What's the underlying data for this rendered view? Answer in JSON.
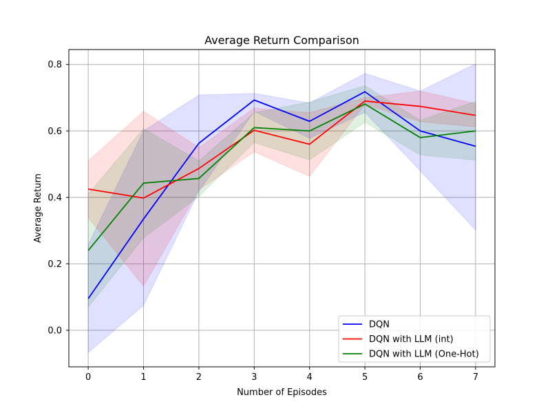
{
  "chart_data": {
    "type": "line",
    "title": "Average Return Comparison",
    "xlabel": "Number of Episodes",
    "ylabel": "Average Return",
    "x": [
      0,
      1,
      2,
      3,
      4,
      5,
      6,
      7
    ],
    "xlim": [
      -0.35,
      7.35
    ],
    "ylim": [
      -0.11,
      0.845
    ],
    "xticks": [
      "0",
      "1",
      "2",
      "3",
      "4",
      "5",
      "6",
      "7"
    ],
    "yticks": [
      "0.0",
      "0.2",
      "0.4",
      "0.6",
      "0.8"
    ],
    "ytick_values": [
      0.0,
      0.2,
      0.4,
      0.6,
      0.8
    ],
    "grid": true,
    "legend_position": "bottom-right",
    "series": [
      {
        "name": "DQN",
        "color": "#0000ff",
        "values": [
          0.095,
          0.335,
          0.563,
          0.693,
          0.629,
          0.718,
          0.6,
          0.554
        ],
        "upper": [
          0.258,
          0.6,
          0.708,
          0.713,
          0.684,
          0.773,
          0.72,
          0.802
        ],
        "lower": [
          -0.067,
          0.075,
          0.418,
          0.659,
          0.578,
          0.656,
          0.48,
          0.302
        ]
      },
      {
        "name": "DQN with LLM (int)",
        "color": "#ff0000",
        "values": [
          0.425,
          0.398,
          0.487,
          0.602,
          0.56,
          0.69,
          0.674,
          0.647
        ],
        "upper": [
          0.51,
          0.659,
          0.55,
          0.669,
          0.655,
          0.7,
          0.72,
          0.682
        ],
        "lower": [
          0.339,
          0.133,
          0.423,
          0.537,
          0.463,
          0.68,
          0.628,
          0.612
        ]
      },
      {
        "name": "DQN with LLM (One-Hot)",
        "color": "#008000",
        "values": [
          0.24,
          0.443,
          0.457,
          0.61,
          0.6,
          0.681,
          0.58,
          0.6
        ],
        "upper": [
          0.41,
          0.607,
          0.51,
          0.655,
          0.687,
          0.736,
          0.632,
          0.689
        ],
        "lower": [
          0.07,
          0.278,
          0.403,
          0.565,
          0.513,
          0.626,
          0.528,
          0.512
        ]
      }
    ]
  }
}
